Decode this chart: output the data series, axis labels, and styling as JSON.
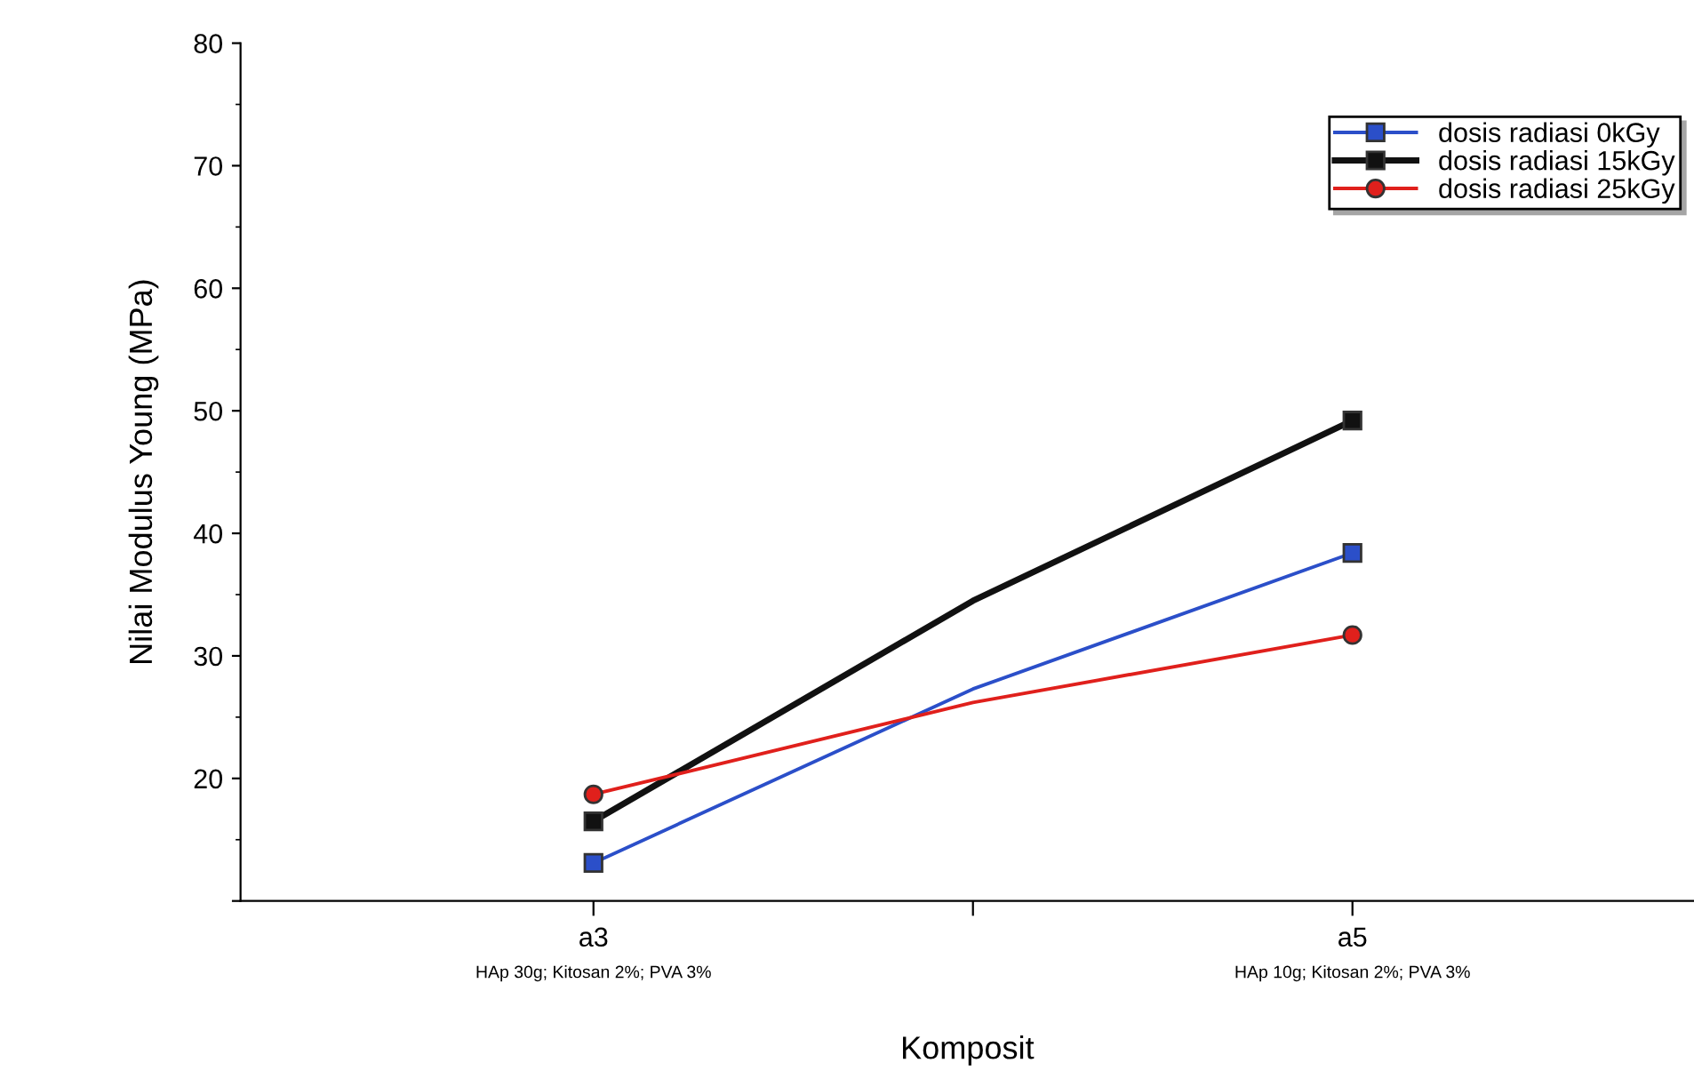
{
  "chart_data": {
    "type": "line",
    "xlabel": "Komposit",
    "ylabel": "Nilai Modulus Young (MPa)",
    "categories": [
      "a3\nHAp 30g; Kitosan 2%; PVA 3%",
      null,
      "a5\nHAp 10g; Kitosan 2%; PVA 3%"
    ],
    "series": [
      {
        "name": "dosis radiasi 0kGy",
        "color": "#2b4fc9",
        "values": [
          13.1,
          27.3,
          38.4
        ],
        "marker": "square"
      },
      {
        "name": "dosis radiasi 15kGy",
        "color": "#111111",
        "values": [
          16.5,
          34.5,
          49.2
        ],
        "marker": "square"
      },
      {
        "name": "dosis radiasi 25kGy",
        "color": "#e0201c",
        "values": [
          18.7,
          26.2,
          31.7
        ],
        "marker": "circle"
      }
    ],
    "ylim": [
      10,
      80
    ],
    "yticks": [
      {
        "value": 10,
        "label": null
      },
      20,
      30,
      40,
      50,
      60,
      70,
      80
    ],
    "grid": false,
    "legend": "top right",
    "line_style": "solid"
  }
}
